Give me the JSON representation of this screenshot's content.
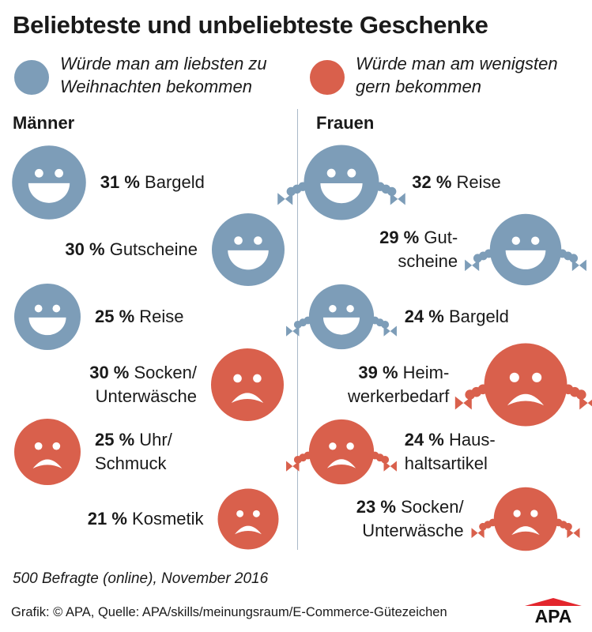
{
  "title": "Beliebteste und unbeliebteste Geschenke",
  "colors": {
    "liked": "#7d9db8",
    "disliked": "#d9604c",
    "divider": "#aab9c8",
    "logo_red": "#e3262d"
  },
  "legend": [
    {
      "key": "liked",
      "text_line1": "Würde man am liebsten zu",
      "text_line2": "Weihnachten bekommen"
    },
    {
      "key": "disliked",
      "text_line1": "Würde man am wenigsten",
      "text_line2": "gern bekommen"
    }
  ],
  "groups": {
    "men": "Männer",
    "women": "Frauen"
  },
  "chart_data": {
    "type": "icon-bubble",
    "title": "Beliebteste und unbeliebteste Geschenke",
    "unit": "%",
    "series": [
      {
        "name": "Männer",
        "items": [
          {
            "value": 31,
            "pct": "31 %",
            "label_lines": [
              "Bargeld"
            ],
            "sentiment": "liked"
          },
          {
            "value": 30,
            "pct": "30 %",
            "label_lines": [
              "Gutscheine"
            ],
            "sentiment": "liked"
          },
          {
            "value": 25,
            "pct": "25 %",
            "label_lines": [
              "Reise"
            ],
            "sentiment": "liked"
          },
          {
            "value": 30,
            "pct": "30 %",
            "label_lines": [
              "Socken/",
              "Unterwäsche"
            ],
            "sentiment": "disliked"
          },
          {
            "value": 25,
            "pct": "25 %",
            "label_lines": [
              "Uhr/",
              "Schmuck"
            ],
            "sentiment": "disliked"
          },
          {
            "value": 21,
            "pct": "21 %",
            "label_lines": [
              "Kosmetik"
            ],
            "sentiment": "disliked"
          }
        ]
      },
      {
        "name": "Frauen",
        "items": [
          {
            "value": 32,
            "pct": "32 %",
            "label_lines": [
              "Reise"
            ],
            "sentiment": "liked"
          },
          {
            "value": 29,
            "pct": "29 %",
            "label_lines": [
              "Gut-",
              "scheine"
            ],
            "sentiment": "liked"
          },
          {
            "value": 24,
            "pct": "24 %",
            "label_lines": [
              "Bargeld"
            ],
            "sentiment": "liked"
          },
          {
            "value": 39,
            "pct": "39 %",
            "label_lines": [
              "Heim-",
              "werkerbedarf"
            ],
            "sentiment": "disliked"
          },
          {
            "value": 24,
            "pct": "24 %",
            "label_lines": [
              "Haus-",
              "haltsartikel"
            ],
            "sentiment": "disliked"
          },
          {
            "value": 23,
            "pct": "23 %",
            "label_lines": [
              "Socken/",
              "Unterwäsche"
            ],
            "sentiment": "disliked"
          }
        ]
      }
    ]
  },
  "note": "500 Befragte (online), November 2016",
  "credit": "Grafik: © APA, Quelle: APA/skills/meinungsraum/E-Commerce-Gütezeichen",
  "logo_text": "APA"
}
